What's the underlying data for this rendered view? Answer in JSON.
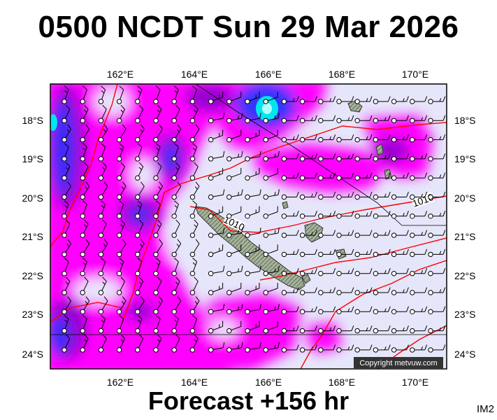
{
  "title": "0500 NCDT Sun 29 Mar 2026",
  "subtitle": "Forecast +156 hr",
  "corner_label": "IM2",
  "copyright": "Copyright metvuw.com",
  "map": {
    "lon_range": [
      160.0,
      171.0
    ],
    "lat_range": [
      -24.4,
      -17.0
    ],
    "lon_ticks": [
      "162°E",
      "164°E",
      "166°E",
      "168°E",
      "170°E"
    ],
    "lat_ticks": [
      "18°S",
      "19°S",
      "20°S",
      "21°S",
      "22°S",
      "23°S",
      "24°S"
    ],
    "isobar_labels": [
      "1010",
      "1010"
    ],
    "colors": {
      "background_field": "#e6e6fa",
      "magenta": "#ff00ff",
      "violet": "#9400d3",
      "blue": "#3030ff",
      "cyan": "#00e5ee",
      "isobar": "#ff0000",
      "land": "#9aa890"
    }
  }
}
